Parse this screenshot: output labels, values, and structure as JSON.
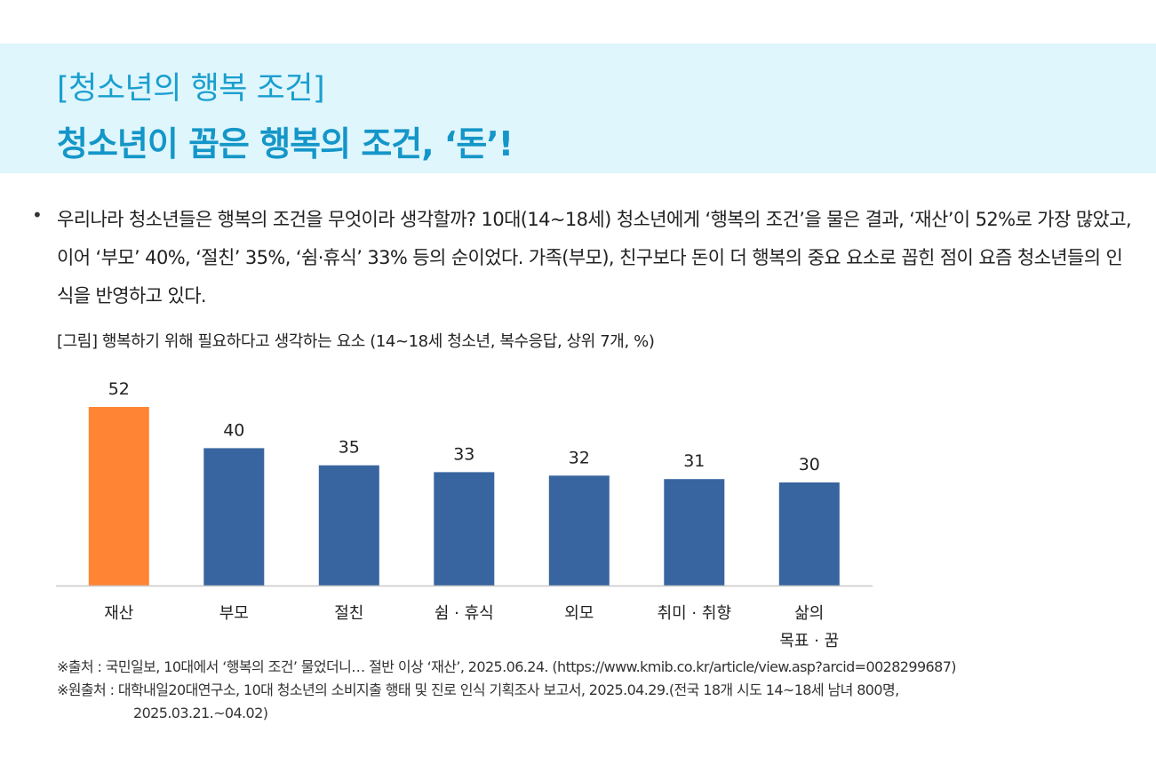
{
  "header": {
    "subtitle": "[청소년의 행복 조건]",
    "title": "청소년이 꼽은 행복의 조건, ‘돈’!"
  },
  "bullet_symbol": "•",
  "body_text": "우리나라 청소년들은 행복의 조건을 무엇이라 생각할까? 10대(14~18세) 청소년에게 ‘행복의 조건’을 물은 결과, ‘재산’이 52%로 가장 많았고, 이어 ‘부모’ 40%, ‘절친’ 35%, ‘쉼·휴식’ 33% 등의 순이었다. 가족(부모), 친구보다 돈이 더 행복의 중요 요소로 꼽힌 점이 요즘 청소년들의 인식을 반영하고 있다.",
  "figure_caption": "[그림] 행복하기 위해 필요하다고 생각하는 요소 (14~18세 청소년, 복수응답, 상위 7개, %)",
  "chart_data": {
    "type": "bar",
    "categories": [
      "재산",
      "부모",
      "절친",
      "쉼 · 휴식",
      "외모",
      "취미 · 취향",
      "삶의 목표 · 꿈"
    ],
    "category_lines": [
      [
        "재산"
      ],
      [
        "부모"
      ],
      [
        "절친"
      ],
      [
        "쉼 · 휴식"
      ],
      [
        "외모"
      ],
      [
        "취미 · 취향"
      ],
      [
        "삶의",
        "목표 · 꿈"
      ]
    ],
    "values": [
      52,
      40,
      35,
      33,
      32,
      31,
      30
    ],
    "ylim": [
      0,
      52
    ],
    "grid": false,
    "data_labels": true,
    "highlight_color": "#ff8534",
    "bar_color": "#38659f",
    "axis_color": "#c8c8c8"
  },
  "notes": {
    "source": "※출처 : 국민일보, 10대에서 ‘행복의 조건’ 물었더니… 절반 이상 ‘재산’, 2025.06.24. (https://www.kmib.co.kr/article/view.asp?arcid=0028299687)",
    "origin": "※원출처 : 대학내일20대연구소, 10대 청소년의 소비지출 행태 및 진로 인식 기획조사 보고서, 2025.04.29.(전국 18개 시도 14~18세 남녀 800명,",
    "origin_cont": "2025.03.21.~04.02)"
  }
}
